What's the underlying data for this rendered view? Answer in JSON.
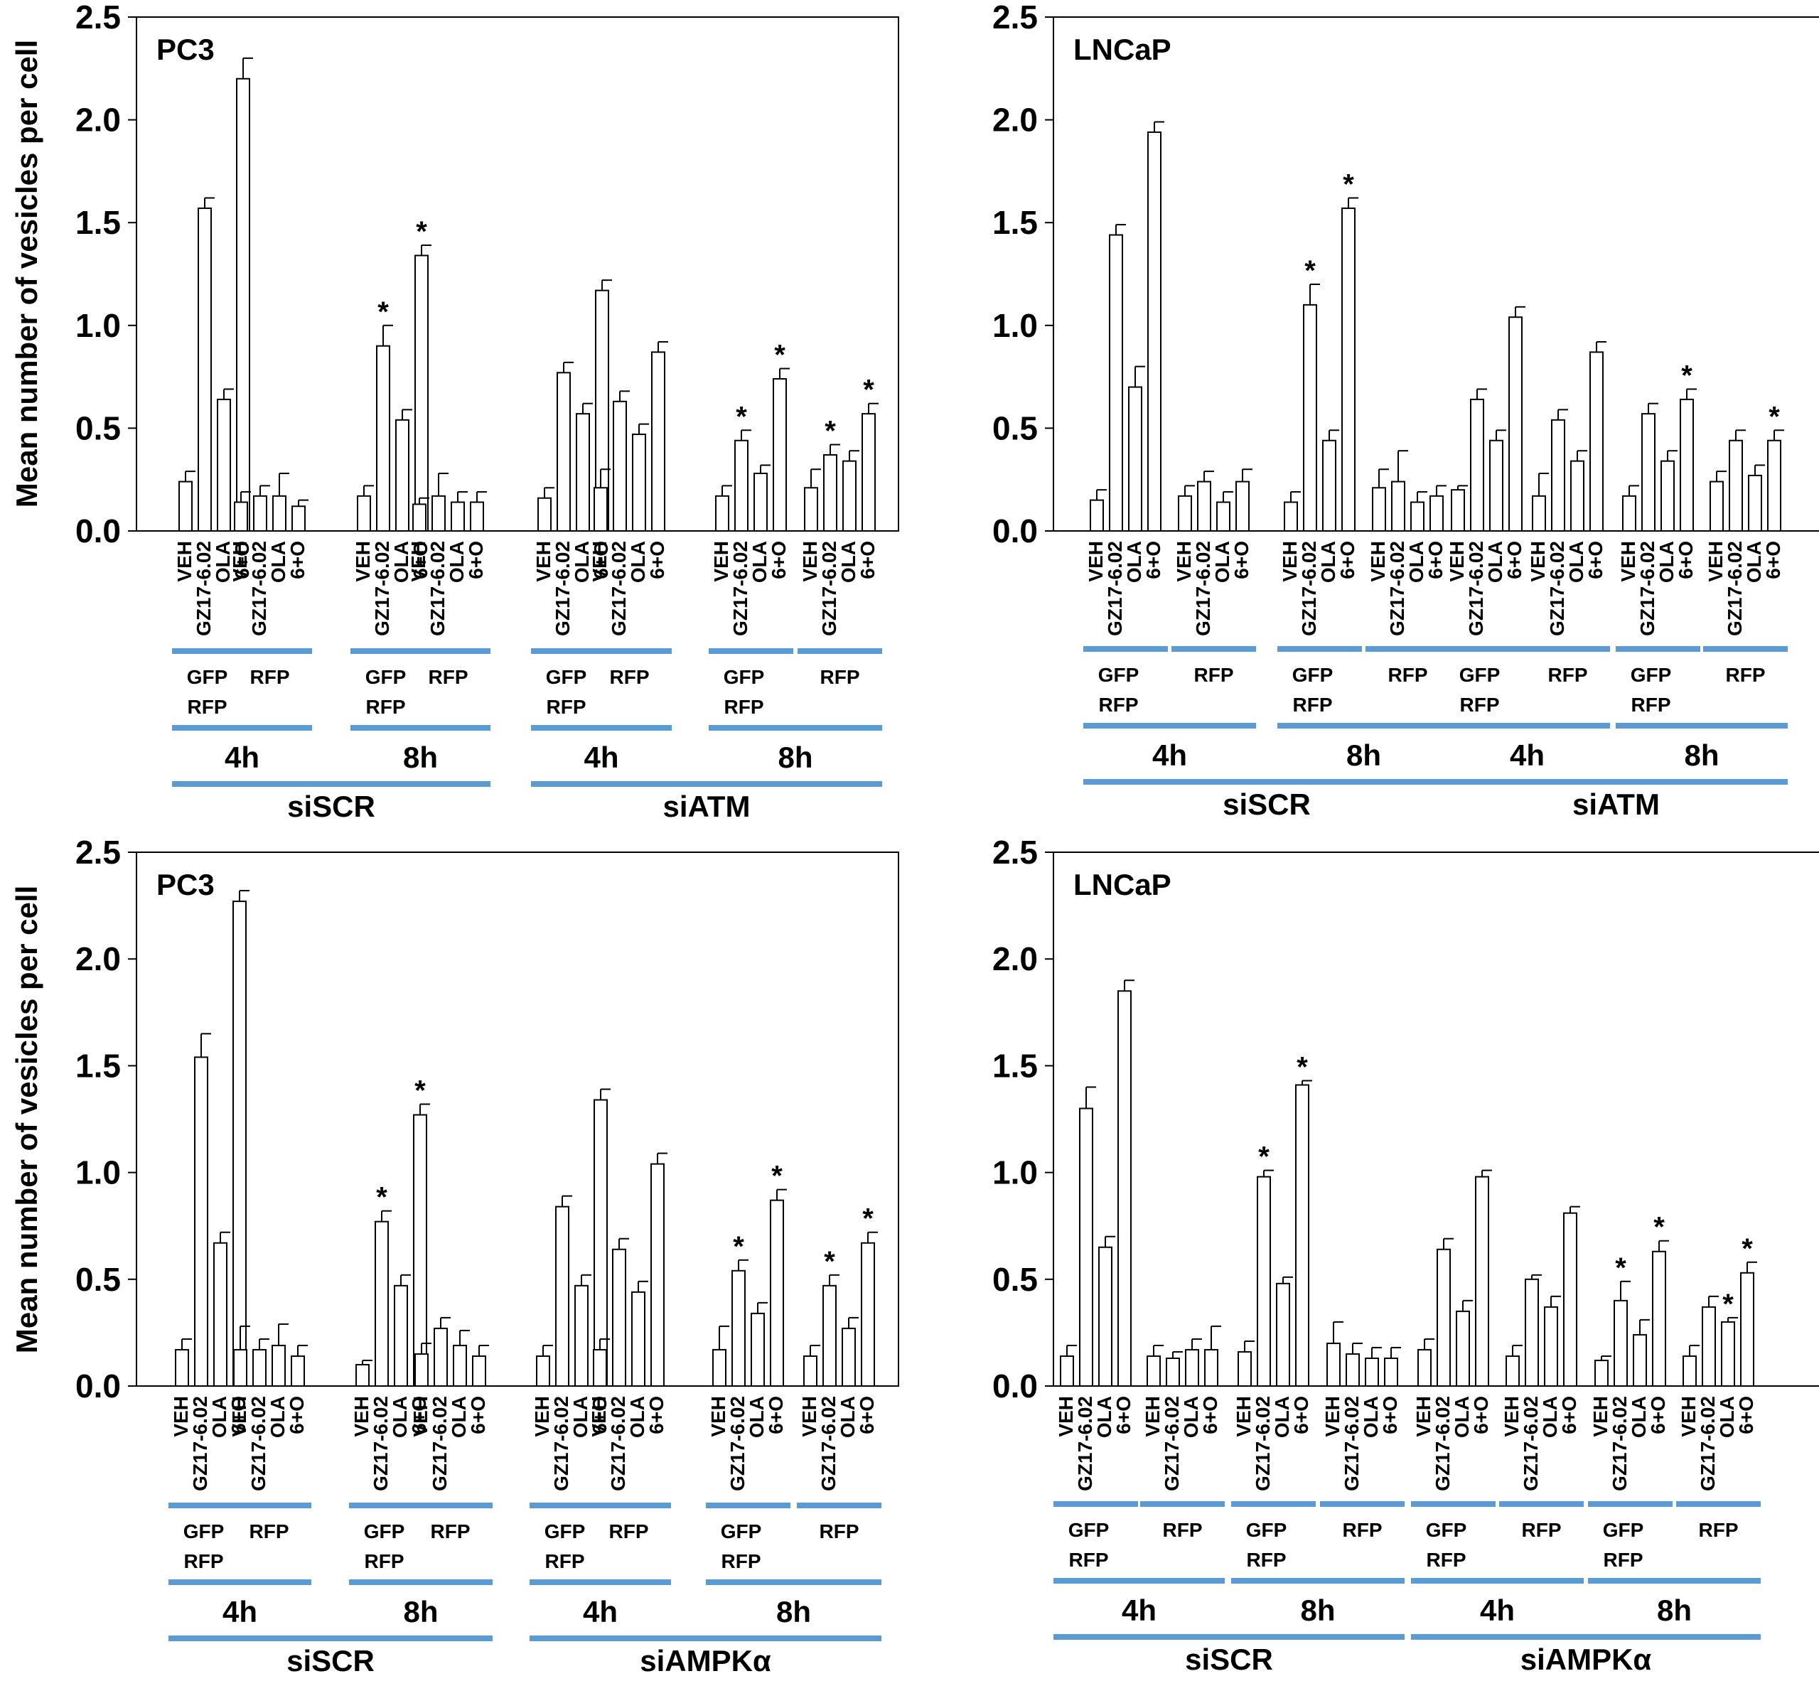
{
  "figure": {
    "accent_color": "#5b9bd5",
    "bar_fill": "#ffffff",
    "bar_stroke": "#000000"
  },
  "chart_data": [
    {
      "type": "bar",
      "title": "PC3",
      "ylabel": "Mean number of vesicles per cell",
      "ylim": [
        0,
        2.5
      ],
      "yticks": [
        "0.0",
        "0.5",
        "1.0",
        "1.5",
        "2.0",
        "2.5"
      ],
      "treatments": [
        "VEH",
        "GZ17-6.02",
        "OLA",
        "6+O"
      ],
      "transfection_labels": [
        [
          "GFP",
          "RFP"
        ],
        [
          "RFP"
        ],
        [
          "GFP",
          "RFP"
        ],
        [
          "RFP"
        ],
        [
          "GFP",
          "RFP"
        ],
        [
          "RFP"
        ],
        [
          "GFP",
          "RFP"
        ],
        [
          "RFP"
        ]
      ],
      "time_labels": [
        "4h",
        "8h",
        "4h",
        "8h"
      ],
      "knockdown_labels": [
        "siSCR",
        "siATM"
      ],
      "values": [
        [
          0.24,
          1.57,
          0.64,
          2.2
        ],
        [
          0.14,
          0.17,
          0.17,
          0.12
        ],
        [
          0.17,
          0.9,
          0.54,
          1.34
        ],
        [
          0.13,
          0.17,
          0.14,
          0.14
        ],
        [
          0.16,
          0.77,
          0.57,
          1.17
        ],
        [
          0.21,
          0.63,
          0.47,
          0.87
        ],
        [
          0.17,
          0.44,
          0.28,
          0.74
        ],
        [
          0.21,
          0.37,
          0.34,
          0.57
        ]
      ],
      "errors": [
        [
          0.05,
          0.05,
          0.05,
          0.1
        ],
        [
          0.05,
          0.05,
          0.11,
          0.03
        ],
        [
          0.05,
          0.1,
          0.05,
          0.05
        ],
        [
          0.03,
          0.11,
          0.05,
          0.05
        ],
        [
          0.05,
          0.05,
          0.05,
          0.05
        ],
        [
          0.09,
          0.05,
          0.05,
          0.05
        ],
        [
          0.05,
          0.05,
          0.04,
          0.05
        ],
        [
          0.09,
          0.05,
          0.05,
          0.05
        ]
      ],
      "significance": [
        [
          false,
          false,
          false,
          false
        ],
        [
          false,
          false,
          false,
          false
        ],
        [
          false,
          true,
          false,
          true
        ],
        [
          false,
          false,
          false,
          false
        ],
        [
          false,
          false,
          false,
          false
        ],
        [
          false,
          false,
          false,
          false
        ],
        [
          false,
          true,
          false,
          true
        ],
        [
          false,
          true,
          false,
          true
        ]
      ],
      "asterisk": "*"
    },
    {
      "type": "bar",
      "title": "LNCaP",
      "ylabel": "",
      "ylim": [
        0,
        2.5
      ],
      "yticks": [
        "0.0",
        "0.5",
        "1.0",
        "1.5",
        "2.0",
        "2.5"
      ],
      "treatments": [
        "VEH",
        "GZ17-6.02",
        "OLA",
        "6+O"
      ],
      "transfection_labels": [
        [
          "GFP",
          "RFP"
        ],
        [
          "RFP"
        ],
        [
          "GFP",
          "RFP"
        ],
        [
          "RFP"
        ],
        [
          "GFP",
          "RFP"
        ],
        [
          "RFP"
        ],
        [
          "GFP",
          "RFP"
        ],
        [
          "RFP"
        ]
      ],
      "time_labels": [
        "4h",
        "8h",
        "4h",
        "8h"
      ],
      "knockdown_labels": [
        "siSCR",
        "siATM"
      ],
      "values": [
        [
          0.15,
          1.44,
          0.7,
          1.94
        ],
        [
          0.17,
          0.24,
          0.14,
          0.24
        ],
        [
          0.14,
          1.1,
          0.44,
          1.57
        ],
        [
          0.21,
          0.24,
          0.14,
          0.17
        ],
        [
          0.2,
          0.64,
          0.44,
          1.04
        ],
        [
          0.17,
          0.54,
          0.34,
          0.87
        ],
        [
          0.17,
          0.57,
          0.34,
          0.64
        ],
        [
          0.24,
          0.44,
          0.27,
          0.44
        ]
      ],
      "errors": [
        [
          0.05,
          0.05,
          0.1,
          0.05
        ],
        [
          0.05,
          0.05,
          0.05,
          0.06
        ],
        [
          0.05,
          0.1,
          0.05,
          0.05
        ],
        [
          0.09,
          0.15,
          0.05,
          0.05
        ],
        [
          0.02,
          0.05,
          0.05,
          0.05
        ],
        [
          0.11,
          0.05,
          0.05,
          0.05
        ],
        [
          0.05,
          0.05,
          0.05,
          0.05
        ],
        [
          0.05,
          0.05,
          0.05,
          0.05
        ]
      ],
      "significance": [
        [
          false,
          false,
          false,
          false
        ],
        [
          false,
          false,
          false,
          false
        ],
        [
          false,
          true,
          false,
          true
        ],
        [
          false,
          false,
          false,
          false
        ],
        [
          false,
          false,
          false,
          false
        ],
        [
          false,
          false,
          false,
          false
        ],
        [
          false,
          false,
          false,
          true
        ],
        [
          false,
          false,
          false,
          true
        ]
      ],
      "asterisk": "*"
    },
    {
      "type": "bar",
      "title": "PC3",
      "ylabel": "Mean number of vesicles per cell",
      "ylim": [
        0,
        2.5
      ],
      "yticks": [
        "0.0",
        "0.5",
        "1.0",
        "1.5",
        "2.0",
        "2.5"
      ],
      "treatments": [
        "VEH",
        "GZ17-6.02",
        "OLA",
        "6+O"
      ],
      "transfection_labels": [
        [
          "GFP",
          "RFP"
        ],
        [
          "RFP"
        ],
        [
          "GFP",
          "RFP"
        ],
        [
          "RFP"
        ],
        [
          "GFP",
          "RFP"
        ],
        [
          "RFP"
        ],
        [
          "GFP",
          "RFP"
        ],
        [
          "RFP"
        ]
      ],
      "time_labels": [
        "4h",
        "8h",
        "4h",
        "8h"
      ],
      "knockdown_labels": [
        "siSCR",
        "siAMPKα"
      ],
      "values": [
        [
          0.17,
          1.54,
          0.67,
          2.27
        ],
        [
          0.17,
          0.17,
          0.19,
          0.14
        ],
        [
          0.1,
          0.77,
          0.47,
          1.27
        ],
        [
          0.15,
          0.27,
          0.19,
          0.14
        ],
        [
          0.14,
          0.84,
          0.47,
          1.34
        ],
        [
          0.17,
          0.64,
          0.44,
          1.04
        ],
        [
          0.17,
          0.54,
          0.34,
          0.87
        ],
        [
          0.14,
          0.47,
          0.27,
          0.67
        ]
      ],
      "errors": [
        [
          0.05,
          0.11,
          0.05,
          0.05
        ],
        [
          0.11,
          0.05,
          0.1,
          0.05
        ],
        [
          0.02,
          0.05,
          0.05,
          0.05
        ],
        [
          0.05,
          0.05,
          0.07,
          0.05
        ],
        [
          0.05,
          0.05,
          0.05,
          0.05
        ],
        [
          0.05,
          0.05,
          0.05,
          0.05
        ],
        [
          0.11,
          0.05,
          0.05,
          0.05
        ],
        [
          0.05,
          0.05,
          0.05,
          0.05
        ]
      ],
      "significance": [
        [
          false,
          false,
          false,
          false
        ],
        [
          false,
          false,
          false,
          false
        ],
        [
          false,
          true,
          false,
          true
        ],
        [
          false,
          false,
          false,
          false
        ],
        [
          false,
          false,
          false,
          false
        ],
        [
          false,
          false,
          false,
          false
        ],
        [
          false,
          true,
          false,
          true
        ],
        [
          false,
          true,
          false,
          true
        ]
      ],
      "asterisk": "*"
    },
    {
      "type": "bar",
      "title": "LNCaP",
      "ylabel": "",
      "ylim": [
        0,
        2.5
      ],
      "yticks": [
        "0.0",
        "0.5",
        "1.0",
        "1.5",
        "2.0",
        "2.5"
      ],
      "treatments": [
        "VEH",
        "GZ17-6.02",
        "OLA",
        "6+O"
      ],
      "transfection_labels": [
        [
          "GFP",
          "RFP"
        ],
        [
          "RFP"
        ],
        [
          "GFP",
          "RFP"
        ],
        [
          "RFP"
        ],
        [
          "GFP",
          "RFP"
        ],
        [
          "RFP"
        ],
        [
          "GFP",
          "RFP"
        ],
        [
          "RFP"
        ]
      ],
      "time_labels": [
        "4h",
        "8h",
        "4h",
        "8h"
      ],
      "knockdown_labels": [
        "siSCR",
        "siAMPKα"
      ],
      "values": [
        [
          0.14,
          1.3,
          0.65,
          1.85
        ],
        [
          0.14,
          0.13,
          0.17,
          0.17
        ],
        [
          0.16,
          0.98,
          0.48,
          1.41
        ],
        [
          0.2,
          0.15,
          0.13,
          0.13
        ],
        [
          0.17,
          0.64,
          0.35,
          0.98
        ],
        [
          0.14,
          0.5,
          0.37,
          0.81
        ],
        [
          0.12,
          0.4,
          0.24,
          0.63
        ],
        [
          0.14,
          0.37,
          0.3,
          0.53
        ]
      ],
      "errors": [
        [
          0.05,
          0.1,
          0.05,
          0.05
        ],
        [
          0.05,
          0.03,
          0.05,
          0.11
        ],
        [
          0.05,
          0.03,
          0.03,
          0.02
        ],
        [
          0.1,
          0.05,
          0.05,
          0.05
        ],
        [
          0.05,
          0.05,
          0.05,
          0.03
        ],
        [
          0.05,
          0.02,
          0.05,
          0.03
        ],
        [
          0.02,
          0.09,
          0.07,
          0.05
        ],
        [
          0.05,
          0.05,
          0.02,
          0.05
        ]
      ],
      "significance": [
        [
          false,
          false,
          false,
          false
        ],
        [
          false,
          false,
          false,
          false
        ],
        [
          false,
          true,
          false,
          true
        ],
        [
          false,
          false,
          false,
          false
        ],
        [
          false,
          false,
          false,
          false
        ],
        [
          false,
          false,
          false,
          false
        ],
        [
          false,
          true,
          false,
          true
        ],
        [
          false,
          false,
          true,
          true
        ]
      ],
      "asterisk": "*"
    }
  ]
}
